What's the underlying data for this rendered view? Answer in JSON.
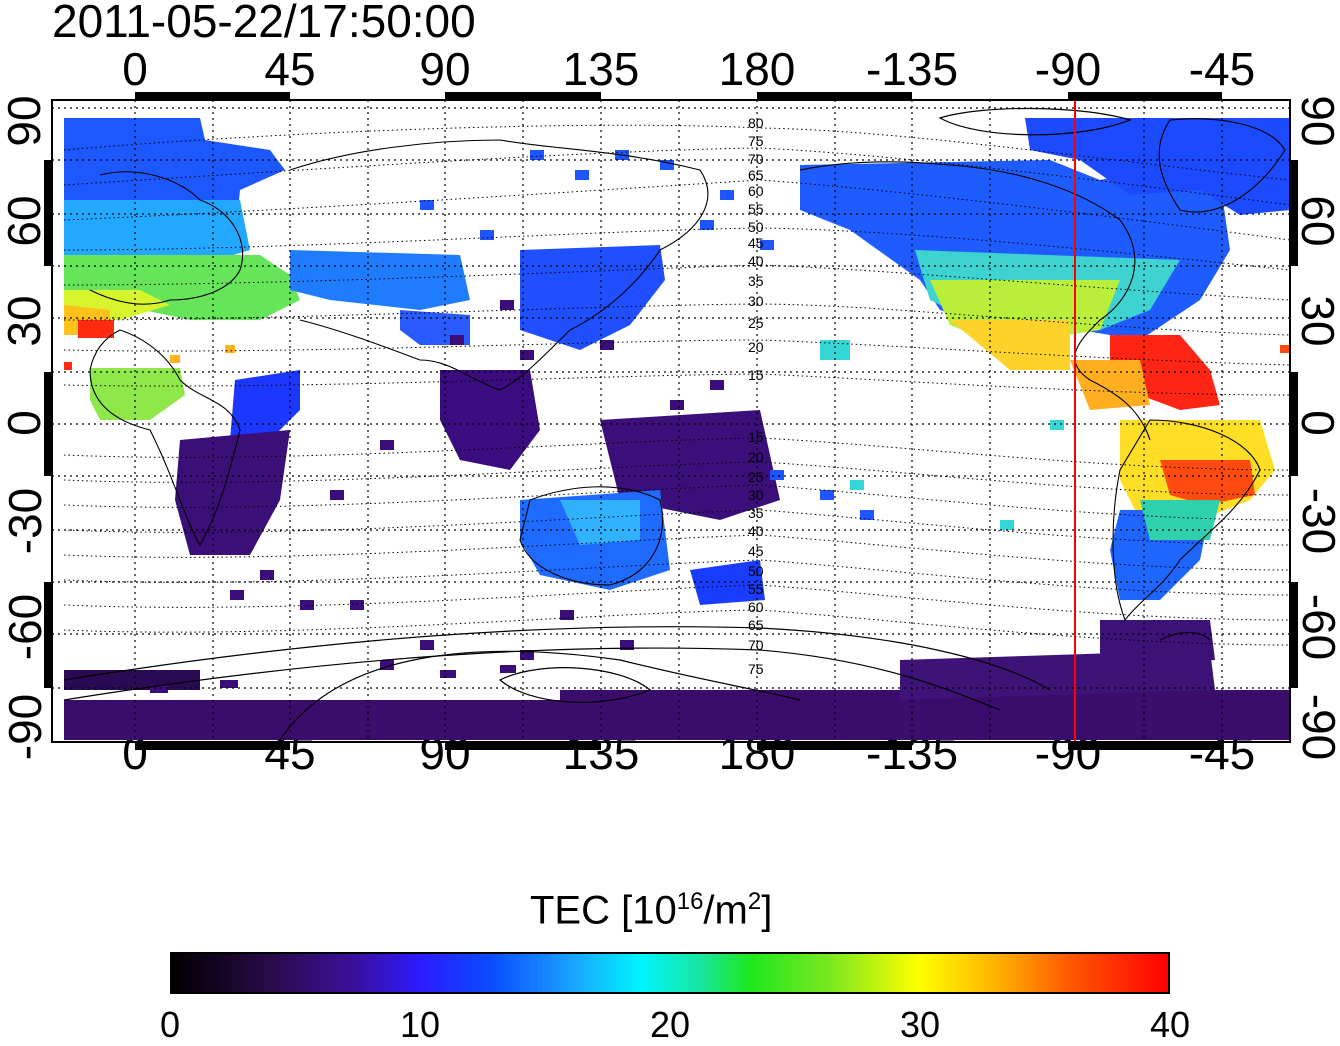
{
  "title": "2011-05-22/17:50:00",
  "lon_ticks": [
    "0",
    "45",
    "90",
    "135",
    "180",
    "-135",
    "-90",
    "-45"
  ],
  "lat_ticks": [
    "90",
    "60",
    "30",
    "0",
    "-30",
    "-60",
    "-90"
  ],
  "contour_labels": [
    "80",
    "75",
    "70",
    "65",
    "60",
    "55",
    "50",
    "45",
    "40",
    "35",
    "30",
    "25",
    "20",
    "15",
    "15",
    "20",
    "25",
    "30",
    "35",
    "40",
    "45",
    "50",
    "55",
    "60",
    "65",
    "70",
    "75"
  ],
  "colorbar": {
    "title_main": "TEC  [10",
    "title_exp": "16",
    "title_tail": "/m",
    "title_exp2": "2",
    "title_end": "]",
    "ticks": [
      "0",
      "10",
      "20",
      "30",
      "40"
    ],
    "range": [
      0,
      40
    ]
  },
  "map": {
    "lon_range": [
      -25,
      325
    ],
    "lat_range": [
      -92,
      92
    ],
    "meridian_marker_lon": -88,
    "marker_color": "#ff0000"
  }
}
